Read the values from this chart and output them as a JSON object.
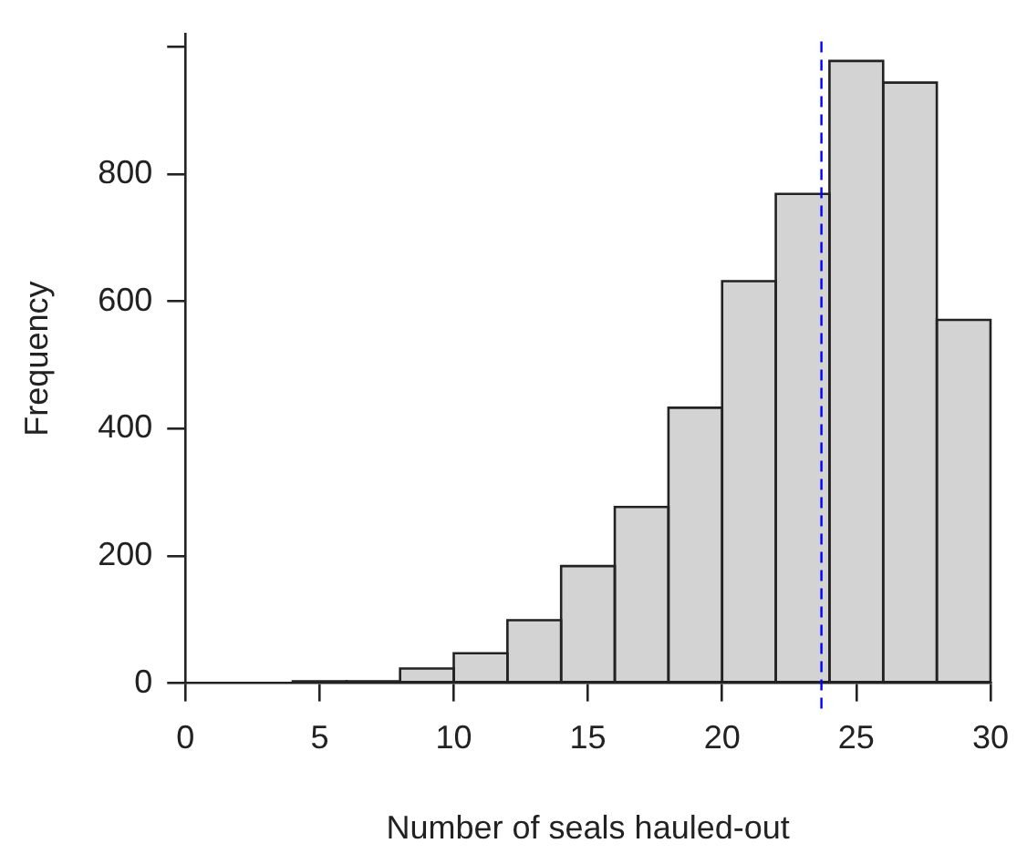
{
  "chart_data": {
    "type": "histogram",
    "xlabel": "Number of seals hauled-out",
    "ylabel": "Frequency",
    "bins": [
      4,
      6,
      8,
      10,
      12,
      14,
      16,
      18,
      20,
      22,
      24,
      26,
      28,
      30
    ],
    "values": [
      3,
      3,
      23,
      47,
      99,
      184,
      277,
      433,
      632,
      769,
      978,
      944,
      571
    ],
    "color": "#d3d3d3",
    "xlim": [
      0,
      30
    ],
    "xticks": [
      0,
      5,
      10,
      15,
      20,
      25,
      30
    ],
    "ylim": [
      0,
      1020
    ],
    "yticks": [
      0,
      200,
      400,
      600,
      800,
      {
        "value": 1000,
        "label": null
      }
    ],
    "grid": false,
    "legend": false,
    "ref_lines": [
      {
        "axis": "x",
        "value": 23.7,
        "color": "#0000ff",
        "line_style": "dashed"
      }
    ]
  }
}
